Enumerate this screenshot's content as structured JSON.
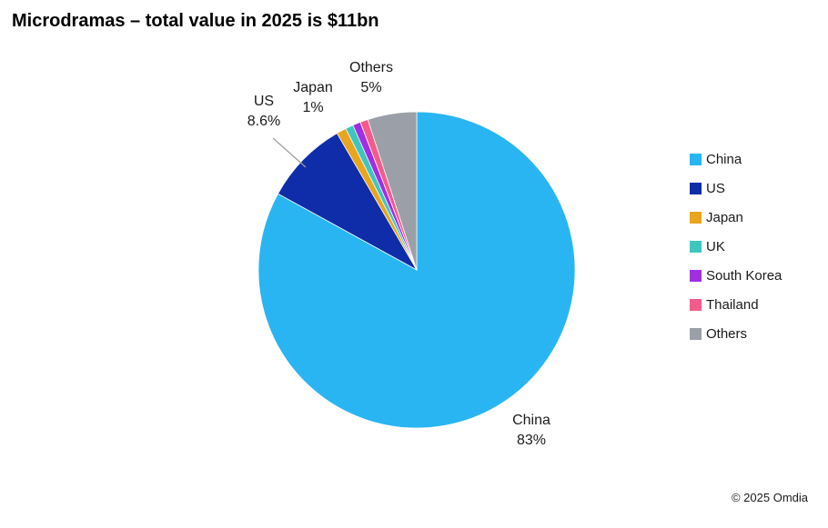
{
  "title": "Microdramas – total value in 2025 is $11bn",
  "footer": "© 2025 Omdia",
  "labels": {
    "china": {
      "name": "China",
      "pct": "83%"
    },
    "us": {
      "name": "US",
      "pct": "8.6%"
    },
    "japan": {
      "name": "Japan",
      "pct": "1%"
    },
    "others": {
      "name": "Others",
      "pct": "5%"
    }
  },
  "chart_data": {
    "type": "pie",
    "title": "Microdramas – total value in 2025 is $11bn",
    "categories": [
      "China",
      "US",
      "Japan",
      "UK",
      "South Korea",
      "Thailand",
      "Others"
    ],
    "values": [
      83,
      8.6,
      1,
      0.8,
      0.8,
      0.8,
      5
    ],
    "colors": [
      "#29B5F2",
      "#0F2DA8",
      "#E8A51D",
      "#3EC6BE",
      "#A02FE0",
      "#F25C8A",
      "#9BA0A8"
    ],
    "unit": "%",
    "start_angle_deg": 0,
    "direction": "clockwise",
    "legend_position": "right",
    "labeled_slices": {
      "China": "83%",
      "US": "8.6%",
      "Japan": "1%",
      "Others": "5%"
    }
  }
}
